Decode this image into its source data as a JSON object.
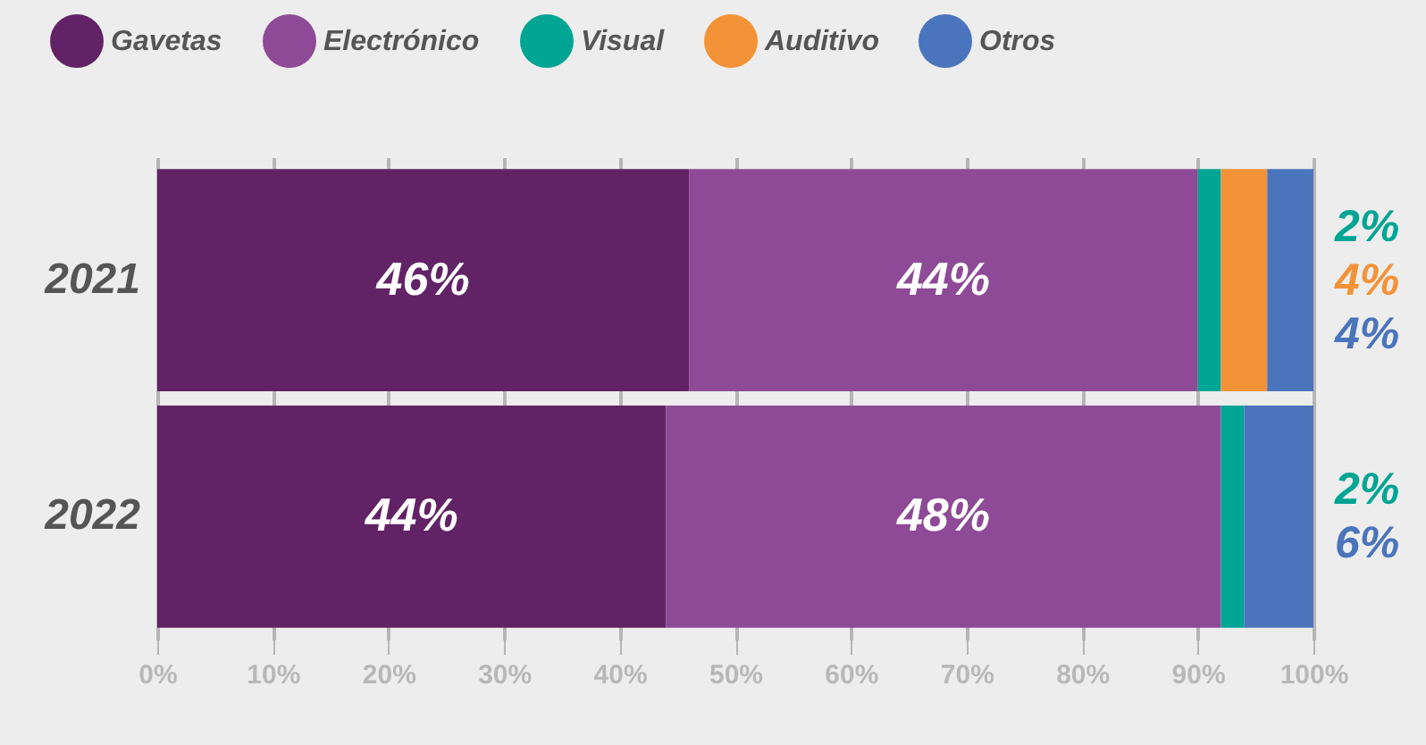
{
  "chart_data": {
    "type": "bar",
    "orientation": "horizontal",
    "stacked": true,
    "categories": [
      "2021",
      "2022"
    ],
    "series": [
      {
        "name": "Gavetas",
        "color": "#612366",
        "values": [
          46,
          44
        ],
        "value_labels": [
          "46%",
          "44%"
        ]
      },
      {
        "name": "Electrónico",
        "color": "#8e4a96",
        "values": [
          44,
          48
        ],
        "value_labels": [
          "44%",
          "48%"
        ]
      },
      {
        "name": "Visual",
        "color": "#00a594",
        "values": [
          2,
          2
        ],
        "value_labels": [
          "2%",
          "2%"
        ]
      },
      {
        "name": "Auditivo",
        "color": "#f39237",
        "values": [
          4,
          null
        ],
        "value_labels": [
          "4%",
          null
        ]
      },
      {
        "name": "Otros",
        "color": "#4a74bc",
        "values": [
          4,
          6
        ],
        "value_labels": [
          "4%",
          "6%"
        ]
      }
    ],
    "xlim": [
      0,
      100
    ],
    "xticks": [
      {
        "value": 0,
        "label": "0%"
      },
      {
        "value": 10,
        "label": "10%"
      },
      {
        "value": 20,
        "label": "20%"
      },
      {
        "value": 30,
        "label": "30%"
      },
      {
        "value": 40,
        "label": "40%"
      },
      {
        "value": 50,
        "label": "50%"
      },
      {
        "value": 60,
        "label": "60%"
      },
      {
        "value": 70,
        "label": "70%"
      },
      {
        "value": 80,
        "label": "80%"
      },
      {
        "value": 90,
        "label": "90%"
      },
      {
        "value": 100,
        "label": "100%"
      }
    ],
    "grid": "x",
    "legend": "top"
  }
}
